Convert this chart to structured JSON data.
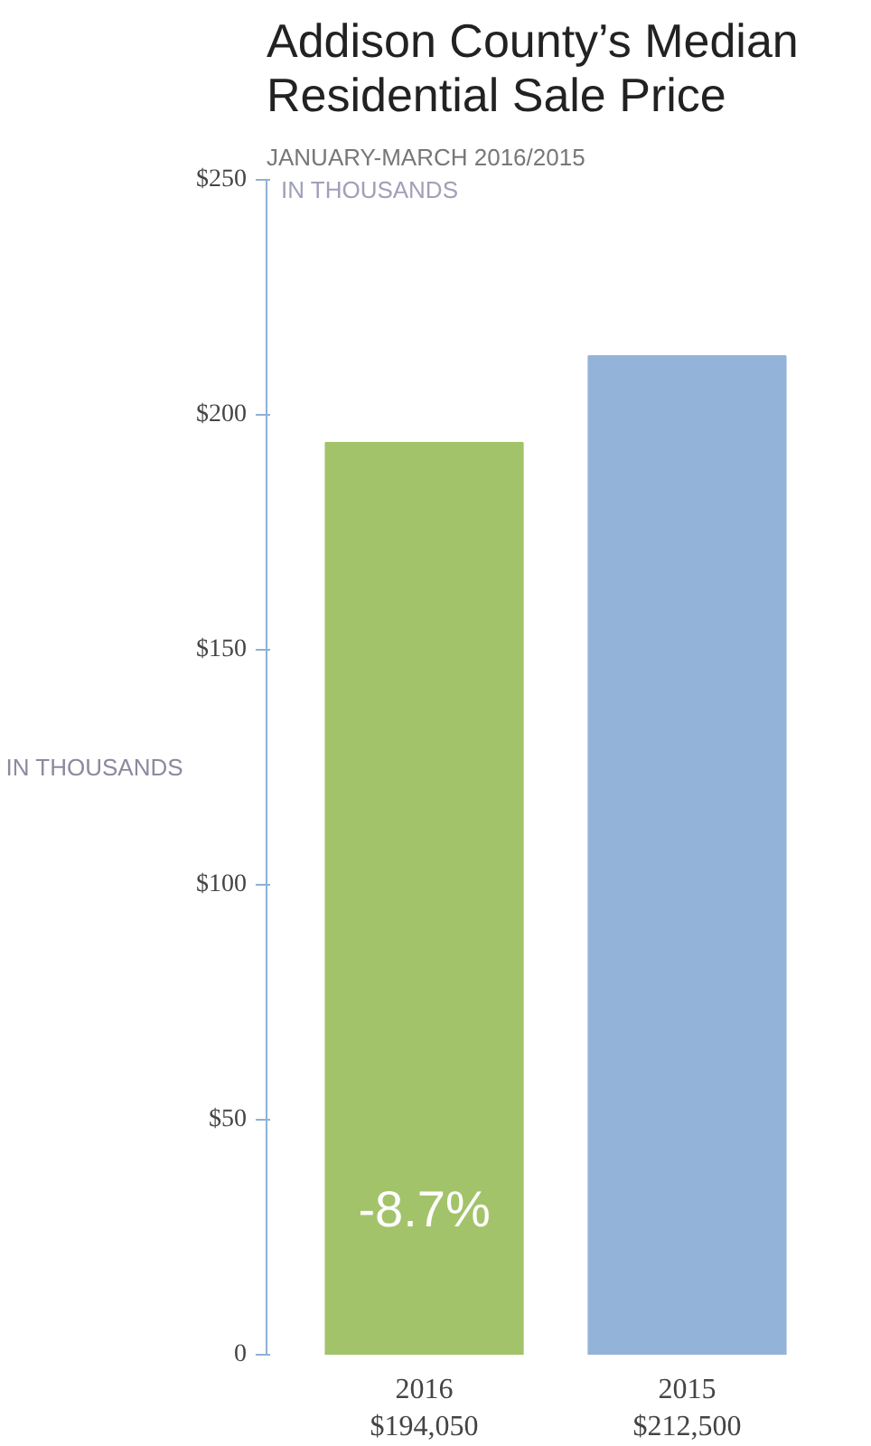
{
  "chart_data": {
    "type": "bar",
    "title": "Addison County’s Median Residential Sale Price",
    "subtitle": "JANUARY-MARCH 2016/2015",
    "categories": [
      "2016",
      "2015"
    ],
    "values": [
      194.05,
      212.5
    ],
    "colors": [
      "#a3c36a",
      "#94b3d8"
    ],
    "ylim": [
      0,
      250
    ],
    "yticks": [
      {
        "value": 0,
        "label": "0"
      },
      {
        "value": 50,
        "label": "$50"
      },
      {
        "value": 100,
        "label": "$100"
      },
      {
        "value": 150,
        "label": "$150"
      },
      {
        "value": 200,
        "label": "$200"
      },
      {
        "value": 250,
        "label": "$250"
      }
    ],
    "ylabel": "IN THOUSANDS",
    "annotations": [
      "IN THOUSANDS",
      "-8.7%",
      "$194,050",
      "$212,500"
    ],
    "grid": false
  }
}
